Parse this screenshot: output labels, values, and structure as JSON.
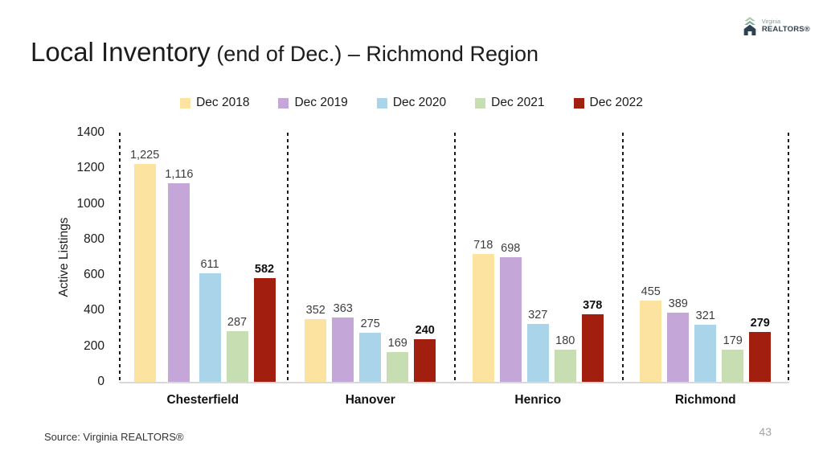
{
  "header": {
    "title_main": "Local Inventory",
    "title_sub": " (end of Dec.) – Richmond Region"
  },
  "logo": {
    "brand_top": "Virginia",
    "brand_bottom": "REALTORS®"
  },
  "footer": {
    "source": "Source: Virginia REALTORS®",
    "page_number": "43"
  },
  "chart_data": {
    "type": "bar",
    "title": "Local Inventory (end of Dec.) – Richmond Region",
    "ylabel": "Active Listings",
    "xlabel": "",
    "ylim": [
      0,
      1400
    ],
    "ytick_step": 200,
    "grid": false,
    "legend_position": "top",
    "group_separator_style": "dashed-vertical-lines",
    "categories": [
      "Chesterfield",
      "Hanover",
      "Henrico",
      "Richmond"
    ],
    "series": [
      {
        "name": "Dec 2018",
        "color": "#FCE3A0",
        "values": [
          1225,
          352,
          718,
          455
        ]
      },
      {
        "name": "Dec 2019",
        "color": "#C4A6D8",
        "values": [
          1116,
          363,
          698,
          389
        ]
      },
      {
        "name": "Dec 2020",
        "color": "#A9D4E9",
        "values": [
          611,
          275,
          327,
          321
        ]
      },
      {
        "name": "Dec 2021",
        "color": "#C7DEB2",
        "values": [
          287,
          169,
          180,
          179
        ]
      },
      {
        "name": "Dec 2022",
        "color": "#A21E0E",
        "values": [
          582,
          240,
          378,
          279
        ],
        "emphasis": true
      }
    ],
    "value_labels": [
      "1,225",
      "1,116",
      "611",
      "287",
      "582",
      "352",
      "363",
      "275",
      "169",
      "240",
      "718",
      "698",
      "327",
      "180",
      "378",
      "455",
      "389",
      "321",
      "179",
      "279"
    ]
  }
}
